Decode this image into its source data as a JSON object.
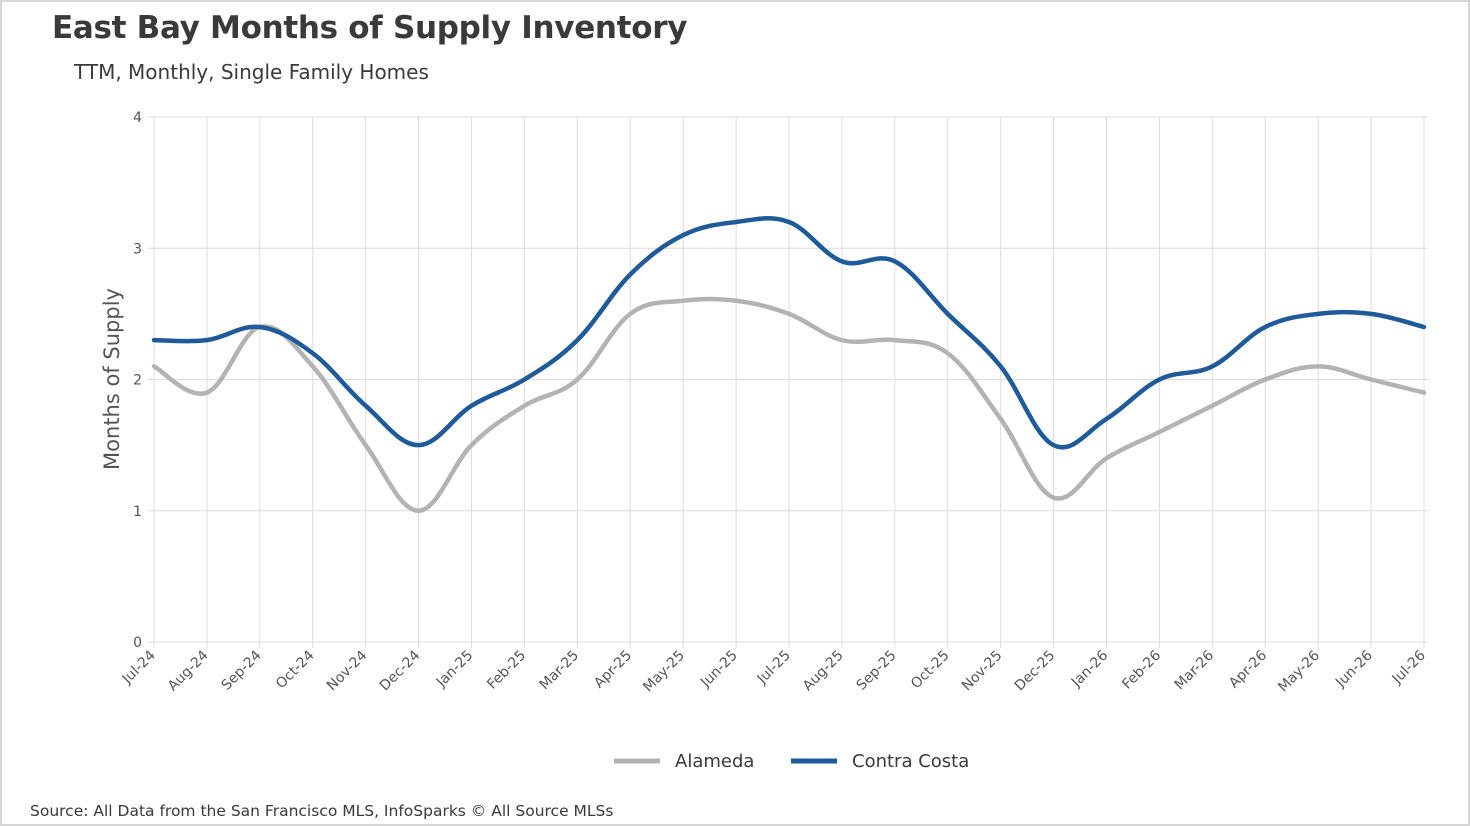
{
  "header": {
    "title": "East Bay Months of Supply Inventory",
    "subtitle": "TTM, Monthly, Single Family Homes"
  },
  "footer": {
    "source": "Source: All Data from the San Francisco MLS, InfoSparks © All Source MLSs"
  },
  "colors": {
    "alameda": "#b3b3b3",
    "contra_costa": "#1f5a9a",
    "grid": "#dcdcdc",
    "text": "#3a3a3a"
  },
  "chart_data": {
    "type": "line",
    "title": "East Bay Months of Supply Inventory",
    "subtitle": "TTM, Monthly, Single Family Homes",
    "xlabel": "",
    "ylabel": "Months of Supply",
    "ylim": [
      0,
      4
    ],
    "yticks": [
      0,
      1,
      2,
      3,
      4
    ],
    "grid": true,
    "legend_position": "bottom",
    "categories": [
      "Jul-24",
      "Aug-24",
      "Sep-24",
      "Oct-24",
      "Nov-24",
      "Dec-24",
      "Jan-25",
      "Feb-25",
      "Mar-25",
      "Apr-25",
      "May-25",
      "Jun-25",
      "Jul-25",
      "Aug-25",
      "Sep-25",
      "Oct-25",
      "Nov-25",
      "Dec-25",
      "Jan-26",
      "Feb-26",
      "Mar-26",
      "Apr-26",
      "May-26",
      "Jun-26",
      "Jul-26"
    ],
    "series": [
      {
        "name": "Alameda",
        "color": "#b3b3b3",
        "values": [
          2.1,
          1.9,
          2.4,
          2.1,
          1.5,
          1.0,
          1.5,
          1.8,
          2.0,
          2.5,
          2.6,
          2.6,
          2.5,
          2.3,
          2.3,
          2.2,
          1.7,
          1.1,
          1.4,
          1.6,
          1.8,
          2.0,
          2.1,
          2.0,
          1.9
        ]
      },
      {
        "name": "Contra Costa",
        "color": "#1f5a9a",
        "values": [
          2.3,
          2.3,
          2.4,
          2.2,
          1.8,
          1.5,
          1.8,
          2.0,
          2.3,
          2.8,
          3.1,
          3.2,
          3.2,
          2.9,
          2.9,
          2.5,
          2.1,
          1.5,
          1.7,
          2.0,
          2.1,
          2.4,
          2.5,
          2.5,
          2.4
        ]
      }
    ]
  }
}
